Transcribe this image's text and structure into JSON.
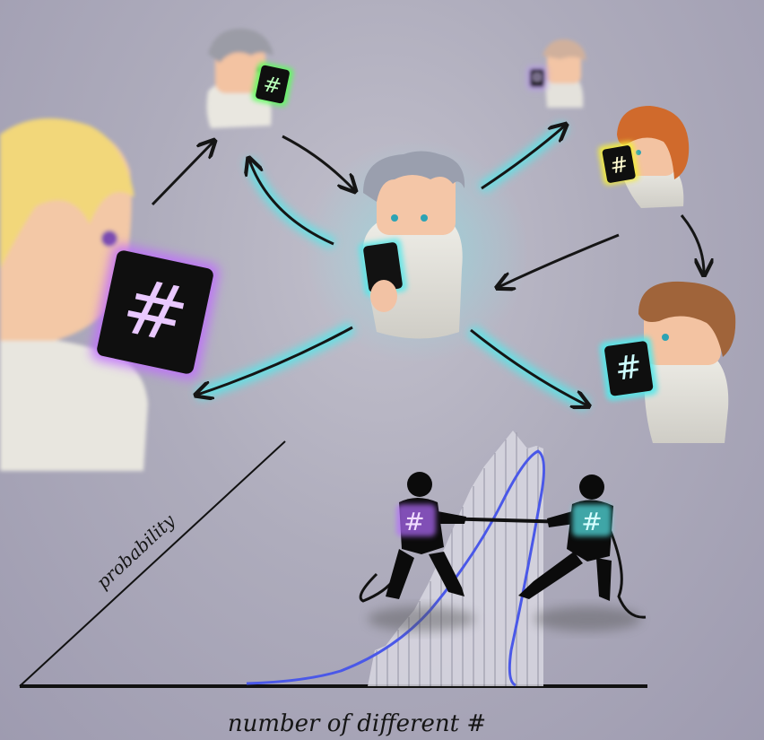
{
  "diagram": {
    "axis_x_label": "number of different #",
    "axis_y_label": "probability",
    "hashtag_symbol": "#",
    "glow_colors": {
      "purple": "#b46cff",
      "green": "#5cff5c",
      "yellow": "#f3ec3a",
      "cyan": "#55e8ea",
      "lavender": "#b79be8"
    },
    "people": [
      {
        "id": "center",
        "icon": "person-with-phone"
      },
      {
        "id": "left-large",
        "icon": "person-with-phone",
        "glow": "purple"
      },
      {
        "id": "top-left",
        "icon": "person-with-phone",
        "glow": "green"
      },
      {
        "id": "top-right-far",
        "icon": "person-with-phone",
        "glow": "lavender"
      },
      {
        "id": "right-redhead",
        "icon": "person-with-phone",
        "glow": "yellow"
      },
      {
        "id": "right-brown",
        "icon": "person-with-phone",
        "glow": "cyan"
      }
    ],
    "tug_of_war": {
      "left_figure_glow": "purple",
      "right_figure_glow": "cyan"
    }
  }
}
